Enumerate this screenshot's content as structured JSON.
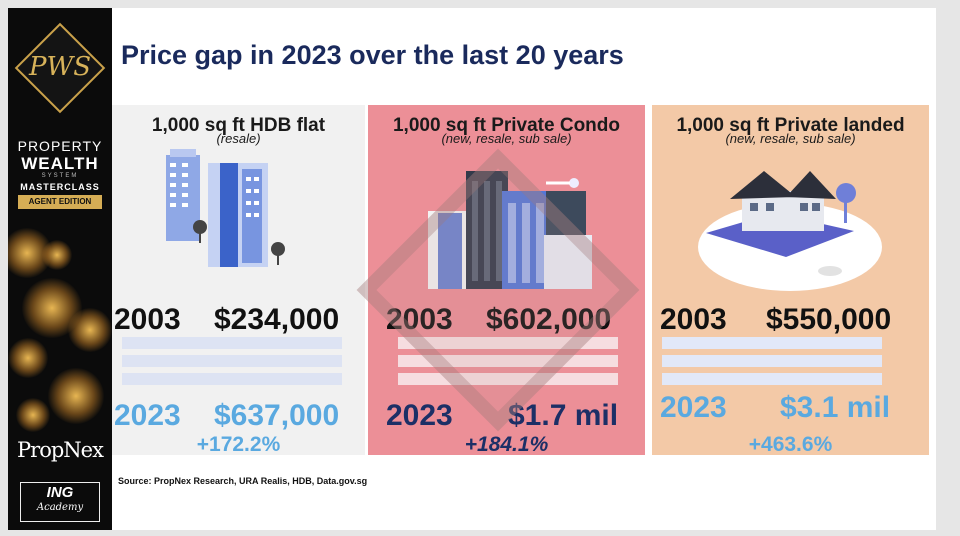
{
  "sidebar": {
    "logo_initials": "PWS",
    "brand_line1": "PROPERTY",
    "brand_line2": "WEALTH",
    "brand_line3": "SYSTEM",
    "brand_line4": "MASTERCLASS",
    "edition": "AGENT EDITION",
    "company": "PropNex",
    "academy_title": "ING",
    "academy_sub": "Academy"
  },
  "title": "Price gap in 2023 over the last 20 years",
  "panels": [
    {
      "title": "1,000 sq ft HDB flat",
      "subtitle": "(resale)",
      "year_a": "2003",
      "price_a": "$234,000",
      "year_b": "2023",
      "price_b": "$637,000",
      "change": "+172.2%",
      "colors": {
        "background": "#f1f1f1",
        "price_b": "#5aa9e0",
        "change": "#5aa9e0"
      }
    },
    {
      "title": "1,000 sq ft Private Condo",
      "subtitle": "(new, resale, sub sale)",
      "year_a": "2003",
      "price_a": "$602,000",
      "year_b": "2023",
      "price_b": "$1.7 mil",
      "change": "+184.1%",
      "colors": {
        "background": "#ec8f97",
        "price_b": "#1c2f66",
        "change": "#1c2f66"
      }
    },
    {
      "title": "1,000 sq ft Private landed",
      "subtitle": "(new, resale, sub sale)",
      "year_a": "2003",
      "price_a": "$550,000",
      "year_b": "2023",
      "price_b": "$3.1 mil",
      "change": "+463.6%",
      "colors": {
        "background": "#f3c9a7",
        "price_b": "#5aa9e0",
        "change": "#5aa9e0"
      }
    }
  ],
  "source": "Source: PropNex Research, URA Realis, HDB, Data.gov.sg",
  "icons": [
    "hdb-buildings-icon",
    "condo-skyline-icon",
    "landed-house-icon"
  ]
}
